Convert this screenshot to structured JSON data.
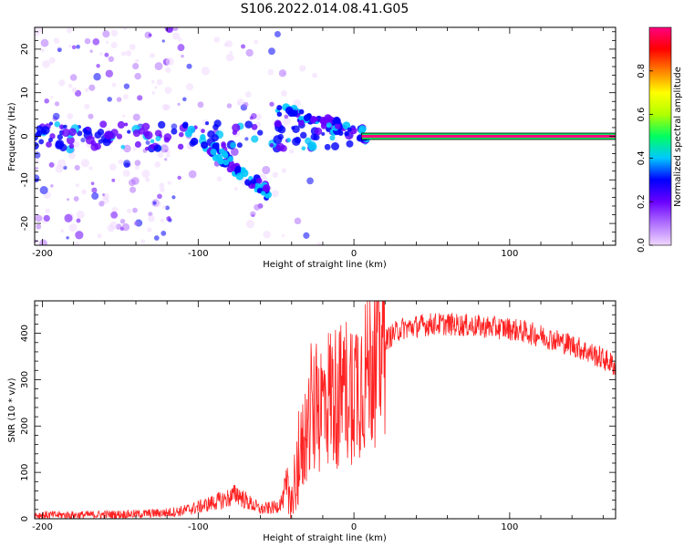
{
  "title": "S106.2022.014.08.41.G05",
  "chart_data": [
    {
      "type": "heatmap",
      "xlabel": "Height of straight line (km)",
      "ylabel": "Frequency (Hz)",
      "xlim": [
        -205,
        168
      ],
      "ylim": [
        -25,
        25
      ],
      "xticks": [
        -200,
        -100,
        0,
        100
      ],
      "yticks": [
        -20,
        -10,
        0,
        10,
        20
      ],
      "grid": false,
      "colorbar": {
        "label": "Normalized spectral amplitude",
        "range": [
          0,
          1
        ],
        "ticks": [
          "0.0",
          "0.2",
          "0.4",
          "0.6",
          "0.8"
        ],
        "colors": [
          "#f0d8ff",
          "#b070ff",
          "#6a00ff",
          "#0000ff",
          "#00c8ff",
          "#00ff60",
          "#b0ff00",
          "#ffff00",
          "#ff8000",
          "#ff0000",
          "#ff0080"
        ]
      },
      "features": [
        {
          "name": "carrier",
          "x_range": [
            5,
            168
          ],
          "frequency": 0,
          "amplitude": 0.95
        },
        {
          "name": "descending branch",
          "x_start": -110,
          "x_end": -55,
          "freq_start": 2,
          "freq_end": -13,
          "amplitude": 0.35
        },
        {
          "name": "upper branch",
          "x_start": -50,
          "x_end": 8,
          "freq_start": 6,
          "freq_end": 0.5,
          "amplitude": 0.3
        }
      ]
    },
    {
      "type": "line",
      "xlabel": "Height of straight line (km)",
      "ylabel": "SNR (10 * v/v)",
      "xlim": [
        -205,
        168
      ],
      "ylim": [
        0,
        470
      ],
      "xticks": [
        -200,
        -100,
        0,
        100
      ],
      "yticks": [
        0,
        100,
        200,
        300,
        400
      ],
      "grid": false,
      "color": "#ff2222",
      "series": [
        {
          "x": [
            -205,
            -180,
            -160,
            -140,
            -120,
            -110,
            -100,
            -90,
            -80,
            -75,
            -70,
            -60,
            -50,
            -40,
            -35,
            -30,
            -25,
            -20,
            -15,
            -10,
            -5,
            0,
            10,
            20,
            30,
            40,
            50,
            60,
            80,
            100,
            120,
            140,
            160,
            168
          ],
          "y": [
            8,
            8,
            9,
            10,
            13,
            17,
            25,
            35,
            45,
            55,
            40,
            20,
            25,
            60,
            120,
            200,
            230,
            250,
            270,
            260,
            280,
            285,
            330,
            385,
            410,
            415,
            420,
            420,
            415,
            410,
            395,
            375,
            345,
            330
          ]
        }
      ]
    }
  ]
}
